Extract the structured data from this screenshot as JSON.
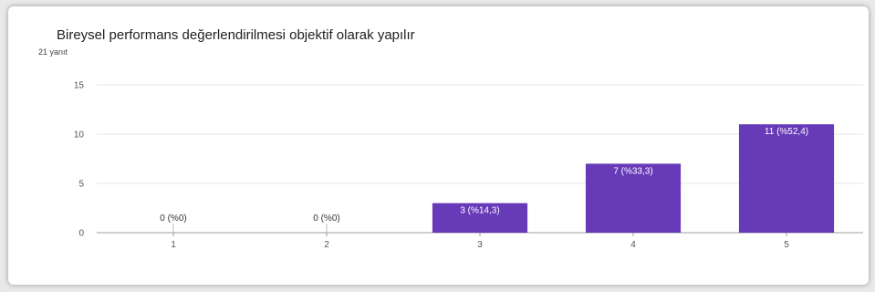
{
  "title": "Bireysel performans değerlendirilmesi objektif olarak yapılır",
  "response_count": "21 yanıt",
  "colors": {
    "bar": "#673ab7",
    "grid": "#e6e6e6",
    "axis": "#9e9e9e"
  },
  "chart_data": {
    "type": "bar",
    "title": "Bireysel performans değerlendirilmesi objektif olarak yapılır",
    "subtitle": "21 yanıt",
    "categories": [
      "1",
      "2",
      "3",
      "4",
      "5"
    ],
    "values": [
      0,
      0,
      3,
      7,
      11
    ],
    "data_labels": [
      "0 (%0)",
      "0 (%0)",
      "3 (%14,3)",
      "7 (%33,3)",
      "11 (%52,4)"
    ],
    "ylim": [
      0,
      15
    ],
    "yticks": [
      0,
      5,
      10,
      15
    ],
    "grid": true,
    "legend": "none"
  }
}
